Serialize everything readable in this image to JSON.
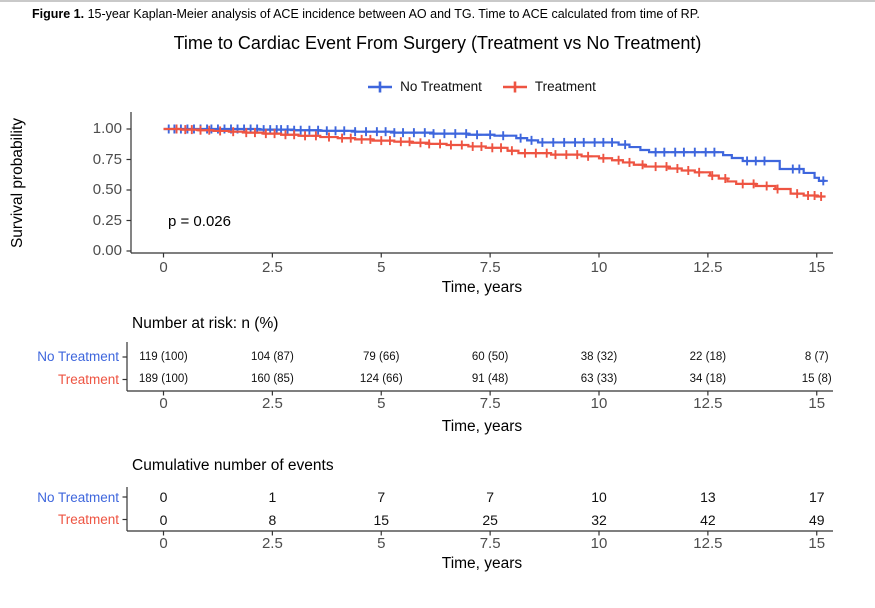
{
  "figure_caption": {
    "label": "Figure 1.",
    "text": " 15-year Kaplan-Meier analysis of ACE incidence between AO and TG. Time to ACE calculated from time of RP."
  },
  "title": "Time to Cardiac Event From Surgery (Treatment vs No Treatment)",
  "legend": [
    {
      "name": "No Treatment",
      "color": "#3E66DD"
    },
    {
      "name": "Treatment",
      "color": "#EE5442"
    }
  ],
  "pvalue": "p = 0.026",
  "axes": {
    "ylabel": "Survival probability",
    "xlabel": "Time, years",
    "xtick_labels": [
      "0",
      "2.5",
      "5",
      "7.5",
      "10",
      "12.5",
      "15"
    ],
    "ytick_labels": [
      "1.00",
      "0.75",
      "0.50",
      "0.25",
      "0.00"
    ]
  },
  "chart_data": {
    "type": "line",
    "subtype": "kaplan-meier-step",
    "title": "Time to Cardiac Event From Surgery (Treatment vs No Treatment)",
    "xlabel": "Time, years",
    "ylabel": "Survival probability",
    "xlim": [
      0,
      15
    ],
    "ylim": [
      0,
      1
    ],
    "xticks": [
      0,
      2.5,
      5,
      7.5,
      10,
      12.5,
      15
    ],
    "yticks": [
      1.0,
      0.75,
      0.5,
      0.25,
      0.0
    ],
    "grid": false,
    "legend_position": "top",
    "pvalue_annotation": "p = 0.026",
    "end_time": 15.2,
    "series": [
      {
        "name": "No Treatment",
        "color": "#3E66DD",
        "steps": [
          [
            0,
            1.0
          ],
          [
            2.2,
            0.995
          ],
          [
            3.0,
            0.99
          ],
          [
            3.6,
            0.985
          ],
          [
            4.4,
            0.978
          ],
          [
            5.3,
            0.97
          ],
          [
            6.2,
            0.962
          ],
          [
            7.0,
            0.953
          ],
          [
            7.6,
            0.945
          ],
          [
            8.1,
            0.925
          ],
          [
            8.35,
            0.907
          ],
          [
            8.6,
            0.89
          ],
          [
            10.45,
            0.872
          ],
          [
            10.7,
            0.852
          ],
          [
            10.95,
            0.828
          ],
          [
            11.15,
            0.81
          ],
          [
            12.85,
            0.786
          ],
          [
            13.05,
            0.762
          ],
          [
            13.3,
            0.738
          ],
          [
            14.15,
            0.672
          ],
          [
            14.7,
            0.64
          ],
          [
            14.95,
            0.6
          ],
          [
            15.05,
            0.575
          ]
        ],
        "censor_times": [
          0.12,
          0.25,
          0.4,
          0.55,
          0.7,
          0.85,
          1.0,
          1.1,
          1.25,
          1.4,
          1.55,
          1.7,
          1.85,
          2.0,
          2.15,
          2.3,
          2.45,
          2.6,
          2.7,
          2.85,
          3.0,
          3.15,
          3.35,
          3.55,
          3.75,
          3.95,
          4.15,
          4.4,
          4.65,
          4.9,
          5.1,
          5.3,
          5.5,
          5.75,
          6.0,
          6.2,
          6.45,
          6.7,
          6.95,
          7.2,
          7.5,
          7.8,
          8.2,
          8.45,
          8.7,
          8.95,
          9.2,
          9.45,
          9.65,
          9.9,
          10.1,
          10.3,
          10.6,
          11.3,
          11.5,
          11.75,
          11.95,
          12.2,
          12.45,
          12.65,
          13.4,
          13.6,
          13.8,
          14.45,
          14.6,
          15.15
        ]
      },
      {
        "name": "Treatment",
        "color": "#EE5442",
        "steps": [
          [
            0,
            1.0
          ],
          [
            0.4,
            0.995
          ],
          [
            0.8,
            0.99
          ],
          [
            1.15,
            0.984
          ],
          [
            1.5,
            0.978
          ],
          [
            1.9,
            0.97
          ],
          [
            2.3,
            0.962
          ],
          [
            2.7,
            0.953
          ],
          [
            3.1,
            0.944
          ],
          [
            3.6,
            0.934
          ],
          [
            4.0,
            0.925
          ],
          [
            4.4,
            0.915
          ],
          [
            4.8,
            0.905
          ],
          [
            5.3,
            0.896
          ],
          [
            5.7,
            0.887
          ],
          [
            6.1,
            0.878
          ],
          [
            6.5,
            0.869
          ],
          [
            7.0,
            0.857
          ],
          [
            7.4,
            0.846
          ],
          [
            7.9,
            0.822
          ],
          [
            8.15,
            0.802
          ],
          [
            8.9,
            0.79
          ],
          [
            9.6,
            0.776
          ],
          [
            10.0,
            0.76
          ],
          [
            10.3,
            0.744
          ],
          [
            10.55,
            0.726
          ],
          [
            10.8,
            0.707
          ],
          [
            11.05,
            0.692
          ],
          [
            11.6,
            0.676
          ],
          [
            11.9,
            0.66
          ],
          [
            12.2,
            0.645
          ],
          [
            12.55,
            0.618
          ],
          [
            12.75,
            0.594
          ],
          [
            12.95,
            0.57
          ],
          [
            13.15,
            0.55
          ],
          [
            13.6,
            0.533
          ],
          [
            14.05,
            0.508
          ],
          [
            14.4,
            0.47
          ],
          [
            14.7,
            0.455
          ],
          [
            15.0,
            0.447
          ]
        ],
        "censor_times": [
          0.3,
          0.5,
          0.65,
          0.85,
          1.05,
          1.3,
          1.6,
          1.9,
          2.1,
          2.35,
          2.55,
          2.8,
          3.0,
          3.25,
          3.5,
          3.8,
          4.1,
          4.3,
          4.55,
          4.75,
          5.0,
          5.2,
          5.45,
          5.65,
          5.9,
          6.1,
          6.35,
          6.6,
          6.85,
          7.1,
          7.3,
          7.55,
          7.75,
          8.0,
          8.3,
          8.55,
          8.8,
          9.0,
          9.25,
          9.5,
          9.75,
          10.1,
          10.45,
          10.7,
          11.0,
          11.3,
          11.55,
          11.8,
          12.05,
          12.3,
          12.6,
          12.9,
          13.3,
          13.55,
          13.85,
          14.1,
          14.55,
          14.8,
          14.95,
          15.1
        ]
      }
    ]
  },
  "risk_table": {
    "title": "Number at risk: n (%)",
    "xlabel": "Time, years",
    "rows": [
      {
        "label": "No Treatment",
        "color": "#3E66DD",
        "values": [
          "119 (100)",
          "104 (87)",
          "79 (66)",
          "60 (50)",
          "38 (32)",
          "22 (18)",
          "8 (7)"
        ]
      },
      {
        "label": "Treatment",
        "color": "#EE5442",
        "values": [
          "189 (100)",
          "160 (85)",
          "124 (66)",
          "91 (48)",
          "63 (33)",
          "34 (18)",
          "15 (8)"
        ]
      }
    ]
  },
  "events_table": {
    "title": "Cumulative number of events",
    "xlabel": "Time, years",
    "rows": [
      {
        "label": "No Treatment",
        "color": "#3E66DD",
        "values": [
          "0",
          "1",
          "7",
          "7",
          "10",
          "13",
          "17"
        ]
      },
      {
        "label": "Treatment",
        "color": "#EE5442",
        "values": [
          "0",
          "8",
          "15",
          "25",
          "32",
          "42",
          "49"
        ]
      }
    ]
  }
}
